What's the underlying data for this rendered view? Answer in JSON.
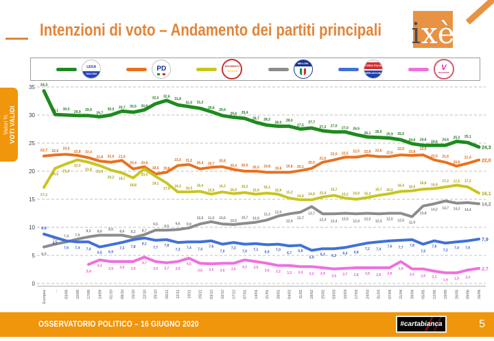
{
  "slide": {
    "title": "Intenzioni di voto – Andamento dei partiti principali",
    "logo": {
      "i": "i",
      "xe": "xè"
    },
    "sidebar": {
      "line1": "Valori %",
      "line2": "VOTI VALIDI"
    },
    "footer": {
      "left": "OSSERVATORIO POLITICO – 16 GIUGNO 2020",
      "badge": "#cartabianca",
      "page": "5"
    }
  },
  "legend": [
    {
      "party": "Lega - Salvini",
      "icon": "lega-logo-icon",
      "lines": [
        "LEGA",
        "SALVINI"
      ]
    },
    {
      "party": "Partito Democratico",
      "icon": "pd-logo-icon",
      "lines": [
        "PD"
      ]
    },
    {
      "party": "Movimento 5 Stelle",
      "icon": "m5s-logo-icon",
      "lines": [
        "MOVIMENTO",
        "★★★★★"
      ]
    },
    {
      "party": "Fratelli d'Italia - Meloni",
      "icon": "fdi-logo-icon",
      "lines": [
        "MELONI"
      ]
    },
    {
      "party": "Forza Italia - Berlusconi",
      "icon": "fi-logo-icon",
      "lines": [
        "FORZA ITALIA",
        "BERLUSCONI"
      ]
    },
    {
      "party": "Italia Viva",
      "icon": "iv-logo-icon",
      "lines": [
        "V",
        "ITALIAVIVA"
      ]
    }
  ],
  "chart_data": {
    "type": "line",
    "title": "Intenzioni di voto – Andamento dei partiti principali",
    "ylabel": "Valori % VOTI VALIDI",
    "ylim": [
      0,
      35
    ],
    "yticks": [
      35,
      30,
      25,
      20,
      15,
      10,
      5,
      0
    ],
    "grid": "horizontal-dashed",
    "legend_position": "top",
    "x_label_rotation": -90,
    "value_label_format": "italian-comma",
    "x": [
      "Europee",
      "...",
      "03/09",
      "10/09",
      "17/09",
      "24/09",
      "01/10",
      "08/10",
      "15/10",
      "22/10",
      "29/10",
      "05/11",
      "12/11",
      "19/11",
      "26/11",
      "03/12",
      "10/12",
      "17/12",
      "07/01",
      "14/01",
      "21/01",
      "28/01",
      "04/02",
      "11/02",
      "18/02",
      "25/02",
      "03/03",
      "10/03",
      "17/03",
      "24/03",
      "31/03",
      "07/04",
      "21/04",
      "28/04",
      "05/05",
      "12/05",
      "19/05",
      "26/05",
      "09/06",
      "16/06"
    ],
    "series": [
      {
        "name": "Lega",
        "color": "#1E8A1E",
        "label_color": "#1E7A1E",
        "values": [
          34.3,
          30.1,
          30.0,
          29.9,
          29.9,
          29.7,
          30.0,
          30.7,
          30.5,
          30.9,
          32.0,
          32.6,
          31.8,
          31.5,
          31.2,
          30.6,
          29.9,
          29.6,
          29.4,
          28.7,
          28.2,
          28.0,
          28.0,
          27.5,
          27.7,
          27.2,
          27.0,
          27.0,
          26.5,
          26.1,
          26.0,
          25.9,
          25.6,
          24.9,
          24.6,
          24.6,
          24.6,
          25.3,
          25.1,
          24.3
        ]
      },
      {
        "name": "PD",
        "color": "#E8711F",
        "label_color": "#DD6610",
        "values": [
          22.7,
          22.9,
          23.0,
          22.8,
          22.4,
          21.8,
          21.6,
          21.9,
          20.4,
          20.8,
          19.5,
          19.8,
          21.0,
          21.2,
          20.4,
          20.7,
          20.8,
          20.3,
          20.0,
          20.0,
          19.8,
          19.8,
          19.8,
          20.1,
          20.5,
          21.6,
          22.0,
          22.5,
          22.5,
          22.8,
          22.6,
          22.6,
          22.9,
          22.8,
          22.9,
          22.0,
          21.6,
          20.9,
          21.4,
          22.0
        ]
      },
      {
        "name": "M5S",
        "color": "#C8C520",
        "label_color": "#A8A012",
        "values": [
          17.1,
          20.5,
          21.3,
          22.0,
          21.6,
          21.0,
          20.2,
          19.7,
          18.8,
          20.4,
          19.1,
          17.9,
          16.3,
          16.3,
          16.4,
          15.9,
          16.3,
          16.0,
          16.2,
          15.9,
          16.1,
          15.9,
          15.2,
          14.9,
          14.9,
          15.4,
          15.7,
          15.2,
          15.0,
          15.3,
          15.7,
          16.0,
          16.4,
          16.5,
          16.8,
          16.9,
          17.2,
          17.5,
          17.2,
          16.1
        ]
      },
      {
        "name": "Fratelli d'Italia",
        "color": "#8C8C8C",
        "label_color": "#7E7E7E",
        "values": [
          6.5,
          7.0,
          7.4,
          7.9,
          8.3,
          8.6,
          8.6,
          8.6,
          8.2,
          8.7,
          9.5,
          9.5,
          9.6,
          9.9,
          10.6,
          11.0,
          10.6,
          10.5,
          10.7,
          10.9,
          11.3,
          12.0,
          12.4,
          12.7,
          13.7,
          12.4,
          12.4,
          12.5,
          12.4,
          12.5,
          12.4,
          12.5,
          12.5,
          11.9,
          13.8,
          14.2,
          14.7,
          14.3,
          14.4,
          14.2
        ]
      },
      {
        "name": "Forza Italia",
        "color": "#4170D8",
        "label_color": "#3A62C8",
        "values": [
          8.8,
          8.2,
          7.6,
          7.4,
          7.4,
          6.5,
          6.9,
          7.3,
          7.8,
          8.1,
          7.7,
          7.8,
          7.3,
          7.4,
          7.4,
          7.6,
          7.0,
          7.3,
          7.0,
          7.1,
          6.9,
          7.0,
          6.7,
          6.8,
          5.9,
          6.2,
          6.2,
          6.4,
          6.8,
          7.2,
          7.4,
          7.6,
          7.7,
          7.8,
          7.0,
          7.6,
          7.2,
          7.4,
          7.6,
          7.9
        ]
      },
      {
        "name": "Italia Viva",
        "color": "#EE6FE0",
        "label_color": "#E862D4",
        "values": [
          null,
          null,
          null,
          null,
          3.4,
          4.2,
          3.9,
          3.9,
          3.9,
          4.7,
          3.9,
          3.7,
          3.9,
          4.5,
          3.6,
          3.5,
          3.6,
          3.6,
          4.2,
          3.9,
          3.6,
          3.2,
          3.2,
          3.0,
          3.0,
          2.8,
          2.6,
          2.7,
          2.8,
          2.8,
          2.8,
          2.8,
          3.9,
          2.6,
          2.6,
          2.2,
          1.9,
          1.9,
          2.4,
          2.7
        ]
      }
    ]
  }
}
